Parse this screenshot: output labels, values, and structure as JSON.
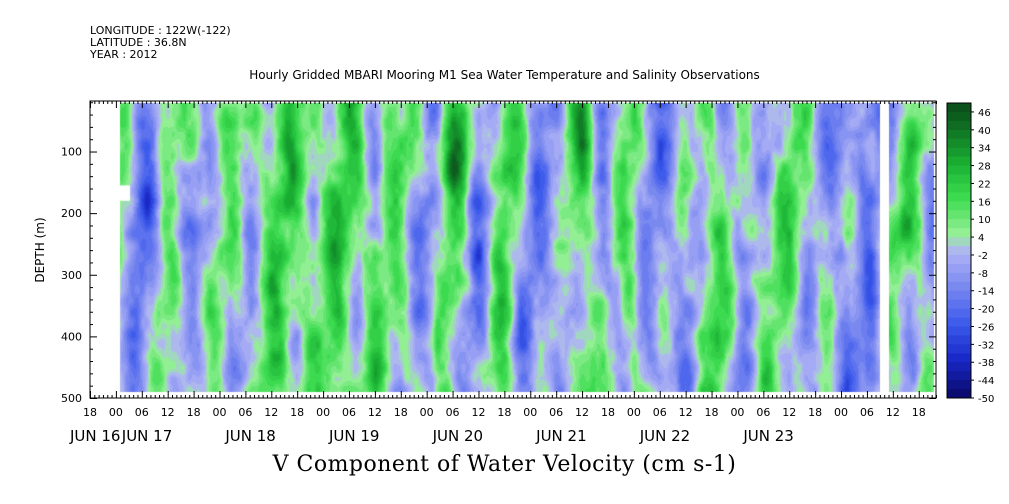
{
  "header": {
    "longitude": "LONGITUDE : 122W(-122)",
    "latitude": "LATITUDE : 36.8N",
    "year": "YEAR : 2012"
  },
  "chart_data": {
    "type": "heatmap",
    "title": "Hourly Gridded MBARI Mooring M1 Sea Water Temperature and Salinity Observations",
    "bottom_title": "V Component of Water Velocity (cm s-1)",
    "ylabel": "DEPTH (m)",
    "xlabel": "",
    "y_ticks": [
      "100",
      "200",
      "300",
      "400",
      "500"
    ],
    "y_tick_values": [
      100,
      200,
      300,
      400,
      500
    ],
    "ylim": [
      500,
      18
    ],
    "x_hour_labels": [
      "18",
      "00",
      "06",
      "12",
      "18",
      "00",
      "06",
      "12",
      "18",
      "00",
      "06",
      "12",
      "18",
      "00",
      "06",
      "12",
      "18",
      "00",
      "06",
      "12",
      "18",
      "00",
      "06",
      "12",
      "18",
      "00",
      "06",
      "12",
      "18",
      "00",
      "06",
      "12",
      "18"
    ],
    "x_hour_values": [
      -6,
      0,
      6,
      12,
      18,
      24,
      30,
      36,
      42,
      48,
      54,
      60,
      66,
      72,
      78,
      84,
      90,
      96,
      102,
      108,
      114,
      120,
      126,
      132,
      138,
      144,
      150,
      156,
      162,
      168,
      174,
      180,
      186
    ],
    "x_day_labels": [
      "JUN 16",
      "JUN 17",
      "JUN 18",
      "JUN 19",
      "JUN 20",
      "JUN 21",
      "JUN 22",
      "JUN 23"
    ],
    "x_day_values": [
      -6,
      6,
      30,
      54,
      78,
      102,
      126,
      150
    ],
    "xlim_hours": [
      -6,
      190
    ],
    "data_extent_hours": [
      1,
      177
    ],
    "gap_hours": [
      177,
      179
    ],
    "colorbar_labels": [
      "46",
      "40",
      "34",
      "28",
      "22",
      "16",
      "10",
      "4",
      "-2",
      "-8",
      "-14",
      "-20",
      "-26",
      "-32",
      "-38",
      "-44",
      "-50"
    ],
    "colorbar_levels": [
      49,
      46,
      43,
      40,
      37,
      34,
      31,
      28,
      25,
      22,
      19,
      16,
      13,
      10,
      7,
      4,
      1,
      -2,
      -5,
      -8,
      -11,
      -14,
      -17,
      -20,
      -23,
      -26,
      -29,
      -32,
      -35,
      -38,
      -41,
      -44,
      -47,
      -50
    ],
    "colors": {
      "strong_positive": "#0a4d1a",
      "positive": "#22c63a",
      "weak_positive": "#8cf08c",
      "weak_negative": "#a8aef0",
      "negative": "#4c66ee",
      "strong_negative": "#0a0a78",
      "missing": "#ffffff"
    },
    "field_summary": "Banded V velocity field: mostly weak southward (-15..-2 cm/s, blue) near days 16-18, alternating with northward (+4..+25 cm/s, green) bands, strongest near-surface on Jun 20-21 and around 200 m early Jun 23."
  }
}
